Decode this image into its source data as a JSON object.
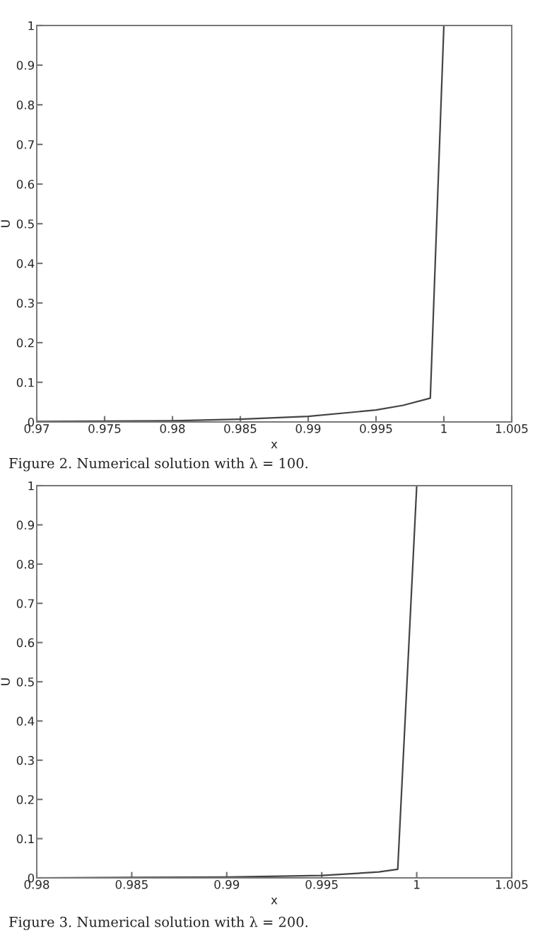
{
  "chart_data": [
    {
      "type": "line",
      "xlabel": "x",
      "ylabel": "U",
      "annotations": [
        "Figure 2. Numerical solution with λ = 100."
      ],
      "series": [
        {
          "color": "#444444",
          "x": [
            0.97,
            0.975,
            0.98,
            0.985,
            0.99,
            0.995,
            0.997,
            0.999,
            1.0
          ],
          "values": [
            0.001,
            0.002,
            0.003,
            0.007,
            0.014,
            0.03,
            0.042,
            0.06,
            1.0
          ]
        }
      ],
      "xlim": [
        0.97,
        1.005
      ],
      "xticks": [
        0.97,
        0.975,
        0.98,
        0.985,
        0.99,
        0.995,
        1,
        1.005
      ],
      "ylim": [
        0,
        1
      ],
      "yticks": [
        0,
        0.1,
        0.2,
        0.3,
        0.4,
        0.5,
        0.6,
        0.7,
        0.8,
        0.9,
        1
      ],
      "grid": false,
      "marker": "none",
      "line_style": "solid"
    },
    {
      "type": "line",
      "xlabel": "x",
      "ylabel": "U",
      "annotations": [
        "Figure 3. Numerical solution with λ = 200."
      ],
      "series": [
        {
          "color": "#444444",
          "x": [
            0.98,
            0.985,
            0.99,
            0.995,
            0.998,
            0.999,
            1.0
          ],
          "values": [
            0.0,
            0.001,
            0.002,
            0.006,
            0.015,
            0.022,
            1.0
          ]
        }
      ],
      "xlim": [
        0.98,
        1.005
      ],
      "xticks": [
        0.98,
        0.985,
        0.99,
        0.995,
        1,
        1.005
      ],
      "ylim": [
        0,
        1
      ],
      "yticks": [
        0,
        0.1,
        0.2,
        0.3,
        0.4,
        0.5,
        0.6,
        0.7,
        0.8,
        0.9,
        1
      ],
      "grid": false,
      "marker": "none",
      "line_style": "solid"
    }
  ]
}
